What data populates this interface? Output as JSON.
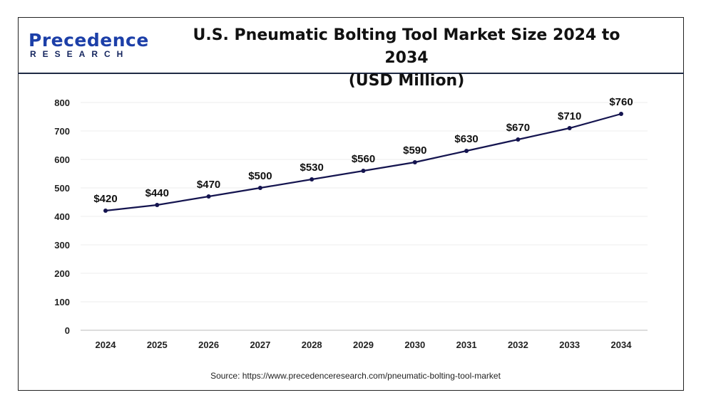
{
  "logo": {
    "word": "Precedence",
    "sub": "RESEARCH"
  },
  "header": {
    "title_line1": "U.S. Pneumatic Bolting Tool Market Size 2024 to 2034",
    "title_line2": "(USD Million)"
  },
  "source": "Source: https://www.precedenceresearch.com/pneumatic-bolting-tool-market",
  "chart_data": {
    "type": "line",
    "title": "U.S. Pneumatic Bolting Tool Market Size 2024 to 2034 (USD Million)",
    "categories": [
      "2024",
      "2025",
      "2026",
      "2027",
      "2028",
      "2029",
      "2030",
      "2031",
      "2032",
      "2033",
      "2034"
    ],
    "values": [
      420,
      440,
      470,
      500,
      530,
      560,
      590,
      630,
      670,
      710,
      760
    ],
    "data_labels": [
      "$420",
      "$440",
      "$470",
      "$500",
      "$530",
      "$560",
      "$590",
      "$630",
      "$670",
      "$710",
      "$760"
    ],
    "yticks": [
      0,
      100,
      200,
      300,
      400,
      500,
      600,
      700,
      800
    ],
    "ylim": [
      0,
      800
    ],
    "xlabel": "",
    "ylabel": "",
    "grid": true,
    "line_color": "#14144f"
  }
}
